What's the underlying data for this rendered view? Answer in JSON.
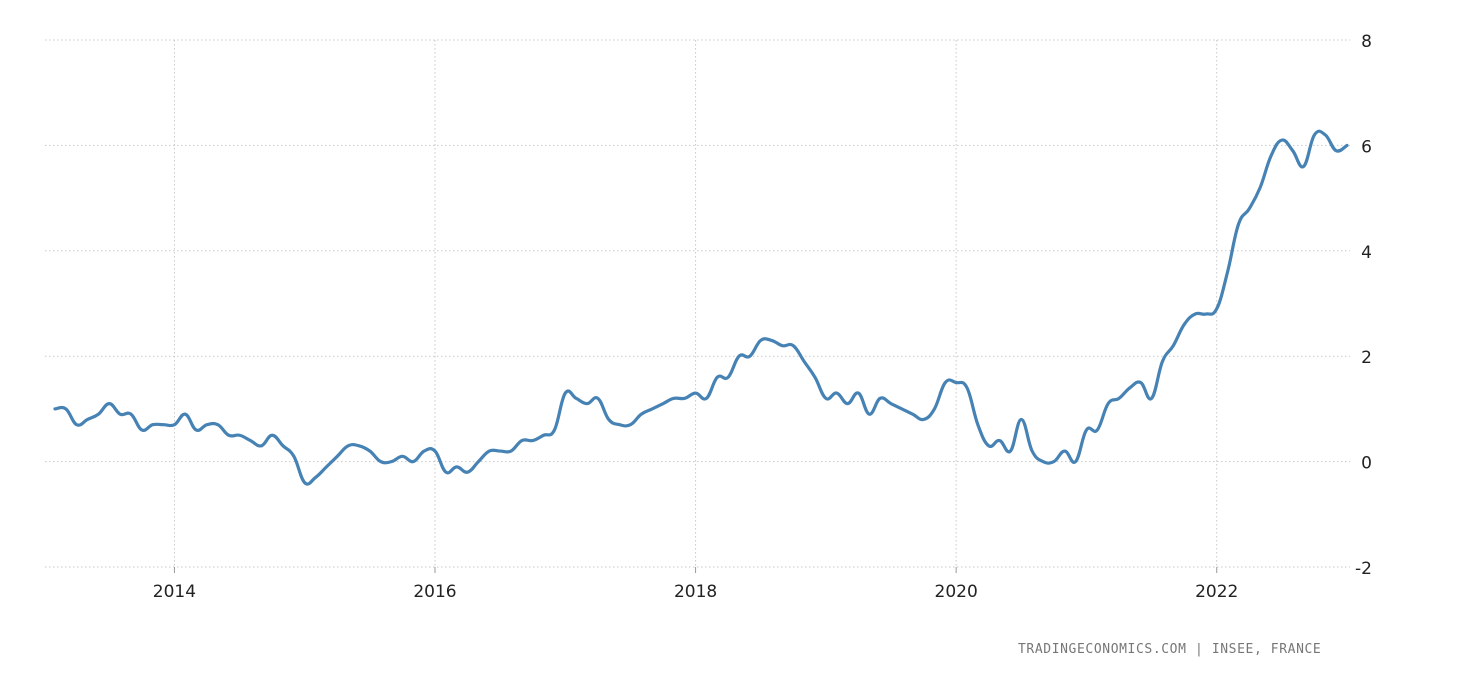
{
  "chart_data": {
    "type": "line",
    "title": "",
    "xlabel": "",
    "ylabel": "",
    "ylim": [
      -2,
      8
    ],
    "yticks": [
      -2,
      0,
      2,
      4,
      6,
      8
    ],
    "xticks": [
      "2014",
      "2016",
      "2018",
      "2020",
      "2022"
    ],
    "grid": true,
    "line_color": "#4682b4",
    "start": "2013-02",
    "frequency": "monthly",
    "x_end": "2023-01",
    "values": [
      1.0,
      1.0,
      0.7,
      0.8,
      0.9,
      1.1,
      0.9,
      0.9,
      0.6,
      0.7,
      0.7,
      0.7,
      0.9,
      0.6,
      0.7,
      0.7,
      0.5,
      0.5,
      0.4,
      0.3,
      0.5,
      0.3,
      0.1,
      -0.4,
      -0.3,
      -0.1,
      0.1,
      0.3,
      0.3,
      0.2,
      0.0,
      0.0,
      0.1,
      0.0,
      0.2,
      0.2,
      -0.2,
      -0.1,
      -0.2,
      0.0,
      0.2,
      0.2,
      0.2,
      0.4,
      0.4,
      0.5,
      0.6,
      1.3,
      1.2,
      1.1,
      1.2,
      0.8,
      0.7,
      0.7,
      0.9,
      1.0,
      1.1,
      1.2,
      1.2,
      1.3,
      1.2,
      1.6,
      1.6,
      2.0,
      2.0,
      2.3,
      2.3,
      2.2,
      2.2,
      1.9,
      1.6,
      1.2,
      1.3,
      1.1,
      1.3,
      0.9,
      1.2,
      1.1,
      1.0,
      0.9,
      0.8,
      1.0,
      1.5,
      1.5,
      1.4,
      0.7,
      0.3,
      0.4,
      0.2,
      0.8,
      0.2,
      0.0,
      0.0,
      0.2,
      0.0,
      0.6,
      0.6,
      1.1,
      1.2,
      1.4,
      1.5,
      1.2,
      1.9,
      2.2,
      2.6,
      2.8,
      2.8,
      2.9,
      3.6,
      4.5,
      4.8,
      5.2,
      5.8,
      6.1,
      5.9,
      5.6,
      6.2,
      6.2,
      5.9,
      6.0
    ]
  },
  "source": "TRADINGECONOMICS.COM | INSEE, FRANCE"
}
